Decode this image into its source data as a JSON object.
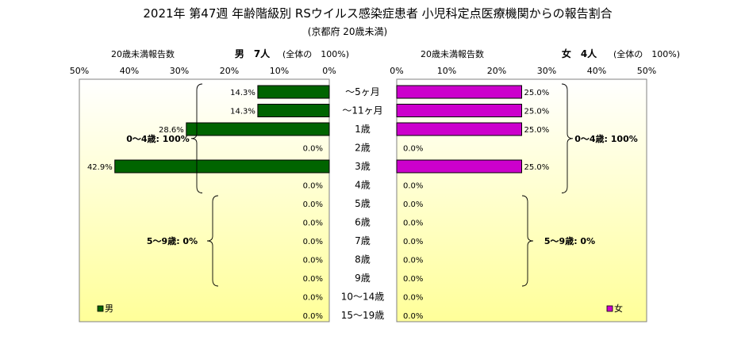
{
  "header": {
    "title": "2021年 第47週 年齢階級別 RSウイルス感染症患者 小児科定点医療機関からの報告割合",
    "subtitle": "(京都府 20歳未満)"
  },
  "colors": {
    "male": "#006400",
    "female": "#cc00cc",
    "plot_gradient_top": "#ffffff",
    "plot_gradient_bottom": "#ffff99"
  },
  "chart_data": [
    {
      "type": "bar",
      "orientation": "horizontal",
      "direction": "right-to-left",
      "panel": "male",
      "header_left": "20歳未満報告数",
      "header_right": "男　7人",
      "header_note": "(全体の　100%)",
      "legend": "男",
      "legend_position": "bottom-left",
      "xlim": [
        0,
        50
      ],
      "ticks": [
        "0%",
        "10%",
        "20%",
        "30%",
        "40%",
        "50%"
      ],
      "categories": [
        "～5ヶ月",
        "～11ヶ月",
        "1歳",
        "2歳",
        "3歳",
        "4歳",
        "5歳",
        "6歳",
        "7歳",
        "8歳",
        "9歳",
        "10～14歳",
        "15～19歳"
      ],
      "values": [
        14.3,
        14.3,
        28.6,
        0,
        42.9,
        0,
        0,
        0,
        0,
        0,
        0,
        0,
        0
      ],
      "labels": [
        "14.3%",
        "14.3%",
        "28.6%",
        "0.0%",
        "42.9%",
        "0.0%",
        "0.0%",
        "0.0%",
        "0.0%",
        "0.0%",
        "0.0%",
        "0.0%",
        "0.0%"
      ],
      "annotations": [
        {
          "text": "0～4歳: 100%",
          "from": 0,
          "to": 5
        },
        {
          "text": "5～9歳: 0%",
          "from": 6,
          "to": 10
        }
      ]
    },
    {
      "type": "bar",
      "orientation": "horizontal",
      "direction": "left-to-right",
      "panel": "female",
      "header_left": "20歳未満報告数",
      "header_right": "女　4人",
      "header_note": "(全体の　100%)",
      "legend": "女",
      "legend_position": "bottom-right",
      "xlim": [
        0,
        50
      ],
      "ticks": [
        "0%",
        "10%",
        "20%",
        "30%",
        "40%",
        "50%"
      ],
      "categories": [
        "～5ヶ月",
        "～11ヶ月",
        "1歳",
        "2歳",
        "3歳",
        "4歳",
        "5歳",
        "6歳",
        "7歳",
        "8歳",
        "9歳",
        "10～14歳",
        "15～19歳"
      ],
      "values": [
        25,
        25,
        25,
        0,
        25,
        0,
        0,
        0,
        0,
        0,
        0,
        0,
        0
      ],
      "labels": [
        "25.0%",
        "25.0%",
        "25.0%",
        "0.0%",
        "25.0%",
        "0.0%",
        "0.0%",
        "0.0%",
        "0.0%",
        "0.0%",
        "0.0%",
        "0.0%",
        "0.0%"
      ],
      "annotations": [
        {
          "text": "0～4歳: 100%",
          "from": 0,
          "to": 5
        },
        {
          "text": "5～9歳: 0%",
          "from": 6,
          "to": 10
        }
      ]
    }
  ]
}
